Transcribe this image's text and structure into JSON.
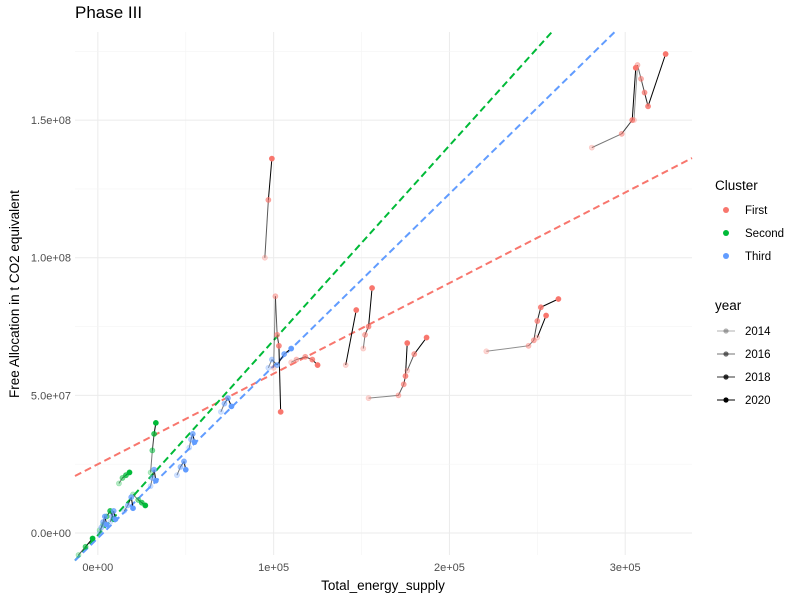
{
  "chart_data": {
    "type": "scatter",
    "title": "Phase III",
    "xlabel": "Total_energy_supply",
    "ylabel": "Free Allocation in t CO2 equivalent",
    "xlim": [
      -13000,
      338000
    ],
    "ylim": [
      -8000000,
      182000000
    ],
    "x_ticks": [
      {
        "value": 0,
        "label": "0e+00"
      },
      {
        "value": 100000,
        "label": "1e+05"
      },
      {
        "value": 200000,
        "label": "2e+05"
      },
      {
        "value": 300000,
        "label": "3e+05"
      }
    ],
    "y_ticks": [
      {
        "value": 0,
        "label": "0.0e+00"
      },
      {
        "value": 50000000,
        "label": "5.0e+07"
      },
      {
        "value": 100000000,
        "label": "1.0e+08"
      },
      {
        "value": 150000000,
        "label": "1.5e+08"
      }
    ],
    "grid": true,
    "legend_cluster": {
      "title": "Cluster",
      "items": [
        {
          "label": "First",
          "color": "#F8766D"
        },
        {
          "label": "Second",
          "color": "#00BA38"
        },
        {
          "label": "Third",
          "color": "#619CFF"
        }
      ]
    },
    "legend_year": {
      "title": "year",
      "items": [
        {
          "label": "2014",
          "alpha": 0.3
        },
        {
          "label": "2016",
          "alpha": 0.55
        },
        {
          "label": "2018",
          "alpha": 0.8
        },
        {
          "label": "2020",
          "alpha": 1.0
        }
      ]
    },
    "trend_lines": [
      {
        "cluster": "First",
        "color": "#F8766D",
        "x": [
          -13000,
          338000
        ],
        "y": [
          20700000,
          136200000
        ]
      },
      {
        "cluster": "Second",
        "color": "#00BA38",
        "x": [
          -13000,
          258000
        ],
        "y": [
          -10000000,
          181800000
        ]
      },
      {
        "cluster": "Third",
        "color": "#619CFF",
        "x": [
          -13000,
          294000
        ],
        "y": [
          -10000000,
          182000000
        ]
      }
    ],
    "series": [
      {
        "cluster": "First",
        "x": [
          305000,
          307000,
          309000,
          311000,
          313000,
          323000
        ],
        "y": [
          150000000,
          170000000,
          165000000,
          160000000,
          155000000,
          174000000
        ]
      },
      {
        "cluster": "First",
        "x": [
          281000,
          298000,
          304000,
          306000
        ],
        "y": [
          140000000,
          145000000,
          150000000,
          169000000
        ]
      },
      {
        "cluster": "First",
        "x": [
          95000,
          97000,
          99000
        ],
        "y": [
          100000000,
          121000000,
          136000000
        ]
      },
      {
        "cluster": "First",
        "x": [
          100000,
          101000,
          102000,
          103000,
          104000
        ],
        "y": [
          60000000,
          86000000,
          72000000,
          68000000,
          44000000
        ]
      },
      {
        "cluster": "First",
        "x": [
          110000,
          113000,
          118000,
          122000,
          125000
        ],
        "y": [
          62000000,
          63000000,
          64000000,
          63000000,
          61000000
        ]
      },
      {
        "cluster": "First",
        "x": [
          141000,
          147000
        ],
        "y": [
          61000000,
          81000000
        ]
      },
      {
        "cluster": "First",
        "x": [
          151000,
          152000,
          154000,
          156000
        ],
        "y": [
          67000000,
          72000000,
          75000000,
          89000000
        ]
      },
      {
        "cluster": "First",
        "x": [
          154000,
          171000,
          174000,
          175000,
          176000
        ],
        "y": [
          49000000,
          50000000,
          54000000,
          57000000,
          69000000
        ]
      },
      {
        "cluster": "First",
        "x": [
          176000,
          180000,
          187000
        ],
        "y": [
          59000000,
          65000000,
          71000000
        ]
      },
      {
        "cluster": "First",
        "x": [
          221000,
          245000,
          248000,
          250000,
          252000,
          262000
        ],
        "y": [
          66000000,
          68000000,
          70000000,
          77000000,
          82000000,
          85000000
        ]
      },
      {
        "cluster": "First",
        "x": [
          250000,
          255000
        ],
        "y": [
          71000000,
          79000000
        ]
      },
      {
        "cluster": "Second",
        "x": [
          30000,
          31000,
          32000,
          33000
        ],
        "y": [
          22000000,
          30000000,
          36000000,
          40000000
        ]
      },
      {
        "cluster": "Second",
        "x": [
          20000,
          23000,
          25000,
          27000
        ],
        "y": [
          14000000,
          12000000,
          11000000,
          10000000
        ]
      },
      {
        "cluster": "Second",
        "x": [
          12000,
          14000,
          16000,
          18000
        ],
        "y": [
          18000000,
          20000000,
          21000000,
          22000000
        ]
      },
      {
        "cluster": "Second",
        "x": [
          1000,
          3000,
          5000,
          7000,
          9000
        ],
        "y": [
          1000000,
          3000000,
          6000000,
          8000000,
          5000000
        ]
      },
      {
        "cluster": "Second",
        "x": [
          -11000,
          -7000,
          -3000
        ],
        "y": [
          -8000000,
          -5000000,
          -2000000
        ]
      },
      {
        "cluster": "Third",
        "x": [
          1000,
          2000,
          3000,
          4000,
          5000
        ],
        "y": [
          0,
          2000000,
          4000000,
          6000000,
          3000000
        ]
      },
      {
        "cluster": "Third",
        "x": [
          7000,
          8000,
          9000,
          10000
        ],
        "y": [
          4000000,
          6000000,
          8000000,
          5000000
        ]
      },
      {
        "cluster": "Third",
        "x": [
          15000,
          17000,
          19000,
          20000
        ],
        "y": [
          8000000,
          10000000,
          13000000,
          9000000
        ]
      },
      {
        "cluster": "Third",
        "x": [
          30000,
          31000,
          32000,
          33000
        ],
        "y": [
          17000000,
          20000000,
          23000000,
          19000000
        ]
      },
      {
        "cluster": "Third",
        "x": [
          45000,
          47000,
          49000,
          50000
        ],
        "y": [
          21000000,
          24000000,
          26000000,
          23000000
        ]
      },
      {
        "cluster": "Third",
        "x": [
          52000,
          53000,
          54000,
          55000
        ],
        "y": [
          31000000,
          34000000,
          36000000,
          33000000
        ]
      },
      {
        "cluster": "Third",
        "x": [
          70000,
          72000,
          74000,
          76000
        ],
        "y": [
          44000000,
          47000000,
          49000000,
          46000000
        ]
      },
      {
        "cluster": "Third",
        "x": [
          97000,
          99000,
          102000,
          106000,
          110000
        ],
        "y": [
          60000000,
          63000000,
          61000000,
          65000000,
          67000000
        ]
      }
    ]
  }
}
